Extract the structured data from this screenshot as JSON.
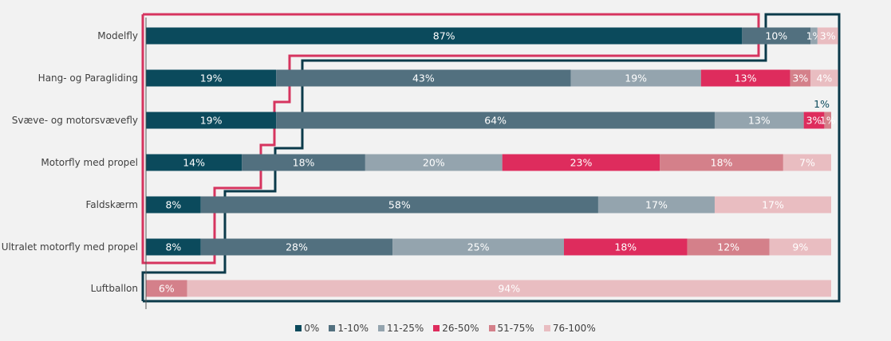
{
  "chart_data": {
    "type": "bar",
    "orientation": "horizontal",
    "stacked": true,
    "percent_stacked": true,
    "categories": [
      "Modelfly",
      "Hang- og Paragliding",
      "Svæve- og motorsvævefly",
      "Motorfly med propel",
      "Faldskærm",
      "Ultralet motorfly med propel",
      "Luftballon"
    ],
    "series": [
      {
        "name": "0%",
        "color": "#0b4a5c",
        "values": [
          87,
          19,
          19,
          14,
          8,
          8,
          0
        ]
      },
      {
        "name": "1-10%",
        "color": "#52707f",
        "values": [
          10,
          43,
          64,
          18,
          58,
          28,
          0
        ]
      },
      {
        "name": "11-25%",
        "color": "#94a4ae",
        "values": [
          1,
          19,
          13,
          20,
          17,
          25,
          0
        ]
      },
      {
        "name": "26-50%",
        "color": "#de2c5d",
        "values": [
          0,
          13,
          3,
          23,
          0,
          18,
          0
        ]
      },
      {
        "name": "51-75%",
        "color": "#d4808a",
        "values": [
          0,
          3,
          1,
          18,
          0,
          12,
          6
        ]
      },
      {
        "name": "76-100%",
        "color": "#e9bdc1",
        "values": [
          3,
          4,
          0,
          7,
          17,
          9,
          94
        ]
      }
    ],
    "data_labels": [
      [
        "87%",
        "10%",
        "1%",
        "",
        "",
        "3%"
      ],
      [
        "19%",
        "43%",
        "19%",
        "13%",
        "3%",
        "4%"
      ],
      [
        "19%",
        "64%",
        "13%",
        "3%",
        "1%",
        ""
      ],
      [
        "14%",
        "18%",
        "20%",
        "23%",
        "18%",
        "7%"
      ],
      [
        "8%",
        "58%",
        "17%",
        "",
        "",
        "17%"
      ],
      [
        "8%",
        "28%",
        "25%",
        "18%",
        "12%",
        "9%"
      ],
      [
        "",
        "",
        "",
        "",
        "6%",
        "94%"
      ]
    ],
    "annotations": [
      {
        "text": "1%",
        "category": "Svæve- og motorsvævefly",
        "position": "above-bar-end"
      }
    ],
    "highlight_outlines": [
      {
        "color": "#d6345f",
        "description": "step outline around 0% segments of upper rows"
      },
      {
        "color": "#0b3a4a",
        "description": "step outline around remaining segments"
      }
    ],
    "xlim": [
      0,
      100
    ],
    "grid": false,
    "legend_position": "bottom"
  }
}
